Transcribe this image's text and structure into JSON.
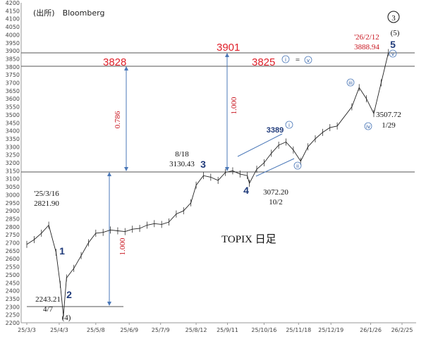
{
  "source_label": "(出所)　Bloomberg",
  "chart_title": "TOPIX 日足",
  "chart_data": {
    "type": "line",
    "y_ticks": [
      2200,
      2250,
      2300,
      2350,
      2400,
      2450,
      2500,
      2550,
      2600,
      2650,
      2700,
      2750,
      2800,
      2850,
      2900,
      2950,
      3000,
      3050,
      3100,
      3150,
      3200,
      3250,
      3300,
      3350,
      3400,
      3450,
      3500,
      3550,
      3600,
      3650,
      3700,
      3750,
      3800,
      3850,
      3900,
      3950,
      4000,
      4050,
      4100,
      4150,
      4200
    ],
    "ylim": [
      2200,
      4200
    ],
    "x_ticks": [
      "25/3/3",
      "25/4/3",
      "25/5/8",
      "25/6/9",
      "25/7/9",
      "25/8/12",
      "25/9/11",
      "25/10/16",
      "25/11/18",
      "25/12/19",
      "26/1/26",
      "26/2/25"
    ],
    "series": [
      {
        "x": [
          "25/3/3",
          "25/3/10",
          "25/3/17",
          "25/3/24",
          "25/3/31",
          "25/4/4",
          "25/4/7",
          "25/4/10",
          "25/4/17",
          "25/4/24",
          "25/5/1",
          "25/5/8",
          "25/5/15",
          "25/5/22",
          "25/5/29",
          "25/6/5",
          "25/6/12",
          "25/6/19",
          "25/6/26",
          "25/7/3",
          "25/7/10",
          "25/7/17",
          "25/7/24",
          "25/7/31",
          "25/8/7",
          "25/8/12",
          "25/8/19",
          "25/8/26",
          "25/9/2",
          "25/9/9",
          "25/9/16",
          "25/9/23",
          "25/9/30",
          "25/10/2",
          "25/10/9",
          "25/10/16",
          "25/10/23",
          "25/10/30",
          "25/11/6",
          "25/11/13",
          "25/11/20",
          "25/11/27",
          "25/12/4",
          "25/12/11",
          "25/12/18",
          "25/12/25",
          "26/1/8",
          "26/1/15",
          "26/1/22",
          "26/1/29",
          "26/2/5",
          "26/2/12"
        ],
        "values": [
          2690,
          2720,
          2760,
          2810,
          2640,
          2440,
          2243,
          2480,
          2540,
          2620,
          2700,
          2760,
          2765,
          2780,
          2775,
          2770,
          2785,
          2790,
          2810,
          2820,
          2815,
          2830,
          2880,
          2900,
          2950,
          3060,
          3120,
          3110,
          3090,
          3140,
          3150,
          3130,
          3120,
          3072,
          3160,
          3200,
          3260,
          3310,
          3330,
          3280,
          3210,
          3300,
          3350,
          3390,
          3420,
          3430,
          3550,
          3670,
          3600,
          3508,
          3700,
          3889
        ]
      }
    ]
  },
  "lines": [
    {
      "label": "3828",
      "value": 3828
    },
    {
      "label": "3901",
      "value": 3901
    },
    {
      "label": "3825",
      "value": 3825
    },
    {
      "value": 3130
    },
    {
      "value": 2243
    }
  ],
  "ratios": {
    "left": "0.786",
    "mid": "1.000",
    "low": "1.000"
  },
  "annotations": {
    "start_date": "'25/3/16",
    "start_value": "2821.90",
    "low_value": "2243.21",
    "low_date": "4/7",
    "peak3_date": "8/18",
    "peak3_value": "3130.43",
    "w4_value": "3072.20",
    "w4_date": "10/2",
    "peak_3389": "3389",
    "recent_date": "'26/2/12",
    "recent_value": "3888.94",
    "sub_low_value": "3507.72",
    "sub_low_date": "1/29",
    "equals": "="
  },
  "waves": {
    "w1": "1",
    "w2": "2",
    "w3": "3",
    "w4": "4",
    "w5": "5"
  },
  "degree_marks": {
    "top_circle": "3",
    "top_paren": "(5)",
    "bottom_paren": "(4)"
  },
  "subwaves": {
    "i": "i",
    "ii": "ii",
    "iii": "iii",
    "iv": "iv",
    "v": "v"
  }
}
